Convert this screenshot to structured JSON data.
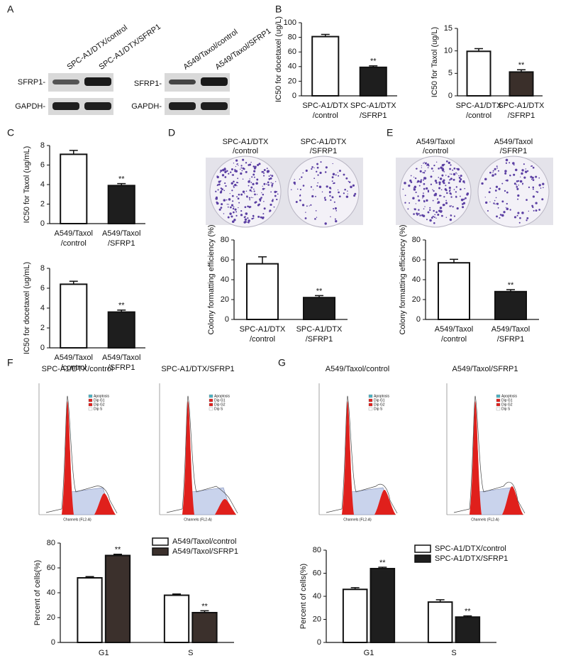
{
  "panel_labels": [
    "A",
    "B",
    "C",
    "D",
    "E",
    "F",
    "G"
  ],
  "blots": {
    "lanes_left": [
      "SPC-A1/DTX/control",
      "SPC-A1/DTX/SFRP1"
    ],
    "lanes_right": [
      "A549/Taxol/control",
      "A549/Taxol/SFRP1"
    ],
    "rows": [
      "SFRP1-",
      "GAPDH-"
    ]
  },
  "colony_titles": {
    "D": [
      "SPC-A1/DTX /control",
      "SPC-A1/DTX /SFRP1"
    ],
    "E": [
      "A549/Taxol /control",
      "A549/Taxol /SFRP1"
    ]
  },
  "flow_titles": {
    "F": [
      "SPC-A1/DTX/control",
      "SPC-A1/DTX/SFRP1"
    ],
    "G": [
      "A549/Taxol/control",
      "A549/Taxol/SFRP1"
    ]
  },
  "flow_legend": [
    "Apoptosis",
    "Dip G1",
    "Dip G2",
    "Dip S"
  ],
  "flow_xlabel": "Channels (FL2-A)",
  "chart_data": [
    {
      "type": "bar",
      "y_label": "IC50 for docetaxel (ug/L)",
      "categories": [
        "SPC-A1/DTX /control",
        "SPC-A1/DTX /SFRP1"
      ],
      "values": [
        81,
        39
      ],
      "errors": [
        3,
        2
      ],
      "colors": [
        "#ffffff",
        "#1e1e1e"
      ],
      "value_annotations": [
        null,
        "**"
      ],
      "ylim": [
        0,
        100
      ],
      "yticks": [
        0,
        20,
        40,
        60,
        80,
        100
      ]
    },
    {
      "type": "bar",
      "y_label": "IC50 for Taxol (ug/L)",
      "categories": [
        "SPC-A1/DTX /control",
        "SPC-A1/DTX /SFRP1"
      ],
      "values": [
        9.9,
        5.3
      ],
      "errors": [
        0.6,
        0.5
      ],
      "colors": [
        "#ffffff",
        "#3a2f2a"
      ],
      "value_annotations": [
        null,
        "**"
      ],
      "ylim": [
        0,
        15
      ],
      "yticks": [
        0,
        5,
        10,
        15
      ]
    },
    {
      "type": "bar",
      "y_label": "IC50 for Taxol (ug/mL)",
      "categories": [
        "A549/Taxol /control",
        "A549/Taxol /SFRP1"
      ],
      "values": [
        7.1,
        3.9
      ],
      "errors": [
        0.4,
        0.2
      ],
      "colors": [
        "#ffffff",
        "#1e1e1e"
      ],
      "value_annotations": [
        null,
        "**"
      ],
      "ylim": [
        0,
        8
      ],
      "yticks": [
        0,
        2,
        4,
        6,
        8
      ]
    },
    {
      "type": "bar",
      "y_label": "IC50 for docetaxel (ug/mL)",
      "categories": [
        "A549/Taxol /control",
        "A549/Taxol /SFRP1"
      ],
      "values": [
        6.4,
        3.6
      ],
      "errors": [
        0.3,
        0.2
      ],
      "colors": [
        "#ffffff",
        "#1e1e1e"
      ],
      "value_annotations": [
        null,
        "**"
      ],
      "ylim": [
        0,
        8
      ],
      "yticks": [
        0,
        2,
        4,
        6,
        8
      ]
    },
    {
      "type": "bar",
      "y_label": "Colony formatting efficiency (%)",
      "categories": [
        "SPC-A1/DTX /control",
        "SPC-A1/DTX /SFRP1"
      ],
      "values": [
        56,
        22
      ],
      "errors": [
        7,
        2
      ],
      "colors": [
        "#ffffff",
        "#1e1e1e"
      ],
      "value_annotations": [
        null,
        "**"
      ],
      "ylim": [
        0,
        80
      ],
      "yticks": [
        0,
        20,
        40,
        60,
        80
      ]
    },
    {
      "type": "bar",
      "y_label": "Colony formatting efficiency (%)",
      "categories": [
        "A549/Taxol /control",
        "A549/Taxol /SFRP1"
      ],
      "values": [
        57,
        28
      ],
      "errors": [
        3.5,
        2
      ],
      "colors": [
        "#ffffff",
        "#1e1e1e"
      ],
      "value_annotations": [
        null,
        "**"
      ],
      "ylim": [
        0,
        80
      ],
      "yticks": [
        0,
        20,
        40,
        60,
        80
      ]
    },
    {
      "type": "grouped_bar",
      "y_label": "Percent of cells(%)",
      "categories": [
        "G1",
        "S"
      ],
      "legend": "upper right",
      "ylim": [
        0,
        80
      ],
      "yticks": [
        0,
        20,
        40,
        60,
        80
      ],
      "series": [
        {
          "name": "A549/Taxol/control",
          "color": "#ffffff",
          "values": [
            52,
            38
          ],
          "errors": [
            1,
            1
          ]
        },
        {
          "name": "A549/Taxol/SFRP1",
          "color": "#3b302c",
          "values": [
            70,
            24
          ],
          "errors": [
            1,
            1.5
          ],
          "value_annotations": [
            "**",
            "**"
          ]
        }
      ]
    },
    {
      "type": "grouped_bar",
      "y_label": "Percent of cells(%)",
      "categories": [
        "G1",
        "S"
      ],
      "legend": "upper right",
      "ylim": [
        0,
        80
      ],
      "yticks": [
        0,
        20,
        40,
        60,
        80
      ],
      "series": [
        {
          "name": "SPC-A1/DTX/control",
          "color": "#ffffff",
          "values": [
            46,
            35
          ],
          "errors": [
            1.5,
            2
          ]
        },
        {
          "name": "SPC-A1/DTX/SFRP1",
          "color": "#1e1e1e",
          "values": [
            64,
            22
          ],
          "errors": [
            1.2,
            1
          ],
          "value_annotations": [
            "**",
            "**"
          ]
        }
      ]
    }
  ]
}
